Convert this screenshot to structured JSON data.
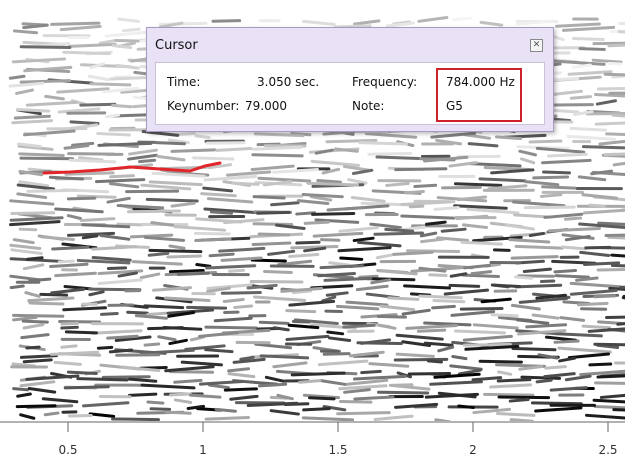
{
  "cursor_window": {
    "title": "Cursor",
    "fields": [
      {
        "label": "Time:",
        "value": "3.050 sec."
      },
      {
        "label": "Frequency:",
        "value": "784.000 Hz"
      },
      {
        "label": "Keynumber:",
        "value": "79.000"
      },
      {
        "label": "Note:",
        "value": "G5"
      }
    ]
  },
  "axis": {
    "ticks": [
      0.5,
      1,
      1.5,
      2,
      2.5
    ]
  }
}
